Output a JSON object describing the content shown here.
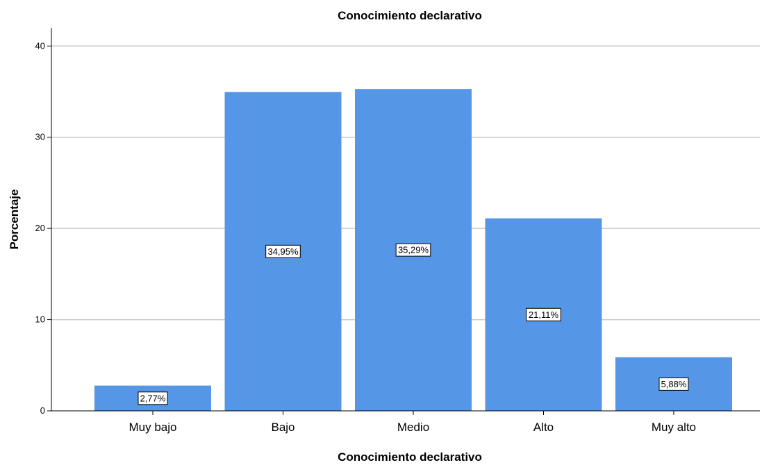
{
  "chart_data": {
    "type": "bar",
    "title": "Conocimiento declarativo",
    "xlabel": "Conocimiento declarativo",
    "ylabel": "Porcentaje",
    "categories": [
      "Muy bajo",
      "Bajo",
      "Medio",
      "Alto",
      "Muy alto"
    ],
    "values": [
      2.77,
      34.95,
      35.29,
      21.11,
      5.88
    ],
    "data_labels": [
      "2,77%",
      "34,95%",
      "35,29%",
      "21,11%",
      "5,88%"
    ],
    "ylim": [
      0,
      42
    ],
    "yticks": [
      0,
      10,
      20,
      30,
      40
    ],
    "grid": true,
    "bar_color": "#5596e6",
    "grid_color": "#c8c8c8"
  }
}
